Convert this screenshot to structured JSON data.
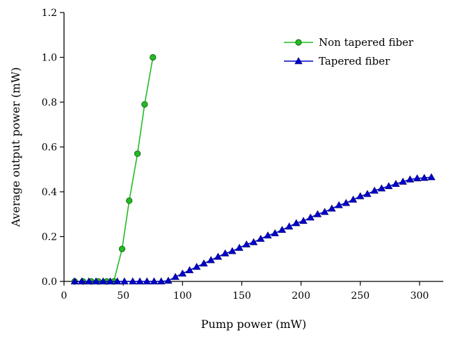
{
  "chart_data": {
    "type": "line",
    "xlabel": "Pump power (mW)",
    "ylabel": "Average output power (mW)",
    "xlim": [
      0,
      320
    ],
    "ylim": [
      0,
      1.2
    ],
    "xticks": [
      0,
      50,
      100,
      150,
      200,
      250,
      300
    ],
    "yticks": [
      0.0,
      0.2,
      0.4,
      0.6,
      0.8,
      1.0,
      1.2
    ],
    "xtick_labels": [
      "0",
      "50",
      "100",
      "150",
      "200",
      "250",
      "300"
    ],
    "ytick_labels": [
      "0.0",
      "0.2",
      "0.4",
      "0.6",
      "0.8",
      "1.0",
      "1.2"
    ],
    "grid": false,
    "legend_position": "top-right",
    "series": [
      {
        "name": "Non tapered fiber",
        "color": "#22bb22",
        "marker": "circle",
        "x": [
          9,
          16,
          23,
          29,
          36,
          42,
          49,
          55,
          62,
          68,
          75
        ],
        "y": [
          0,
          0,
          0,
          0,
          0,
          0,
          0.145,
          0.36,
          0.57,
          0.79,
          1.0
        ]
      },
      {
        "name": "Tapered fiber",
        "color": "#0000cc",
        "marker": "triangle",
        "x": [
          9,
          15,
          21,
          27,
          33,
          39,
          45,
          51,
          58,
          64,
          70,
          76,
          82,
          88,
          94,
          100,
          106,
          112,
          118,
          124,
          130,
          136,
          142,
          148,
          154,
          160,
          166,
          172,
          178,
          184,
          190,
          196,
          202,
          208,
          214,
          220,
          226,
          232,
          238,
          244,
          250,
          256,
          262,
          268,
          274,
          280,
          286,
          292,
          298,
          304,
          310
        ],
        "y": [
          0,
          0,
          0,
          0,
          0,
          0,
          0,
          0,
          0,
          0,
          0,
          0,
          0,
          0.003,
          0.02,
          0.035,
          0.05,
          0.065,
          0.08,
          0.095,
          0.11,
          0.125,
          0.135,
          0.15,
          0.165,
          0.175,
          0.19,
          0.205,
          0.215,
          0.23,
          0.245,
          0.26,
          0.27,
          0.285,
          0.3,
          0.31,
          0.325,
          0.34,
          0.35,
          0.365,
          0.38,
          0.39,
          0.405,
          0.415,
          0.425,
          0.435,
          0.445,
          0.455,
          0.46,
          0.462,
          0.465
        ]
      }
    ]
  }
}
